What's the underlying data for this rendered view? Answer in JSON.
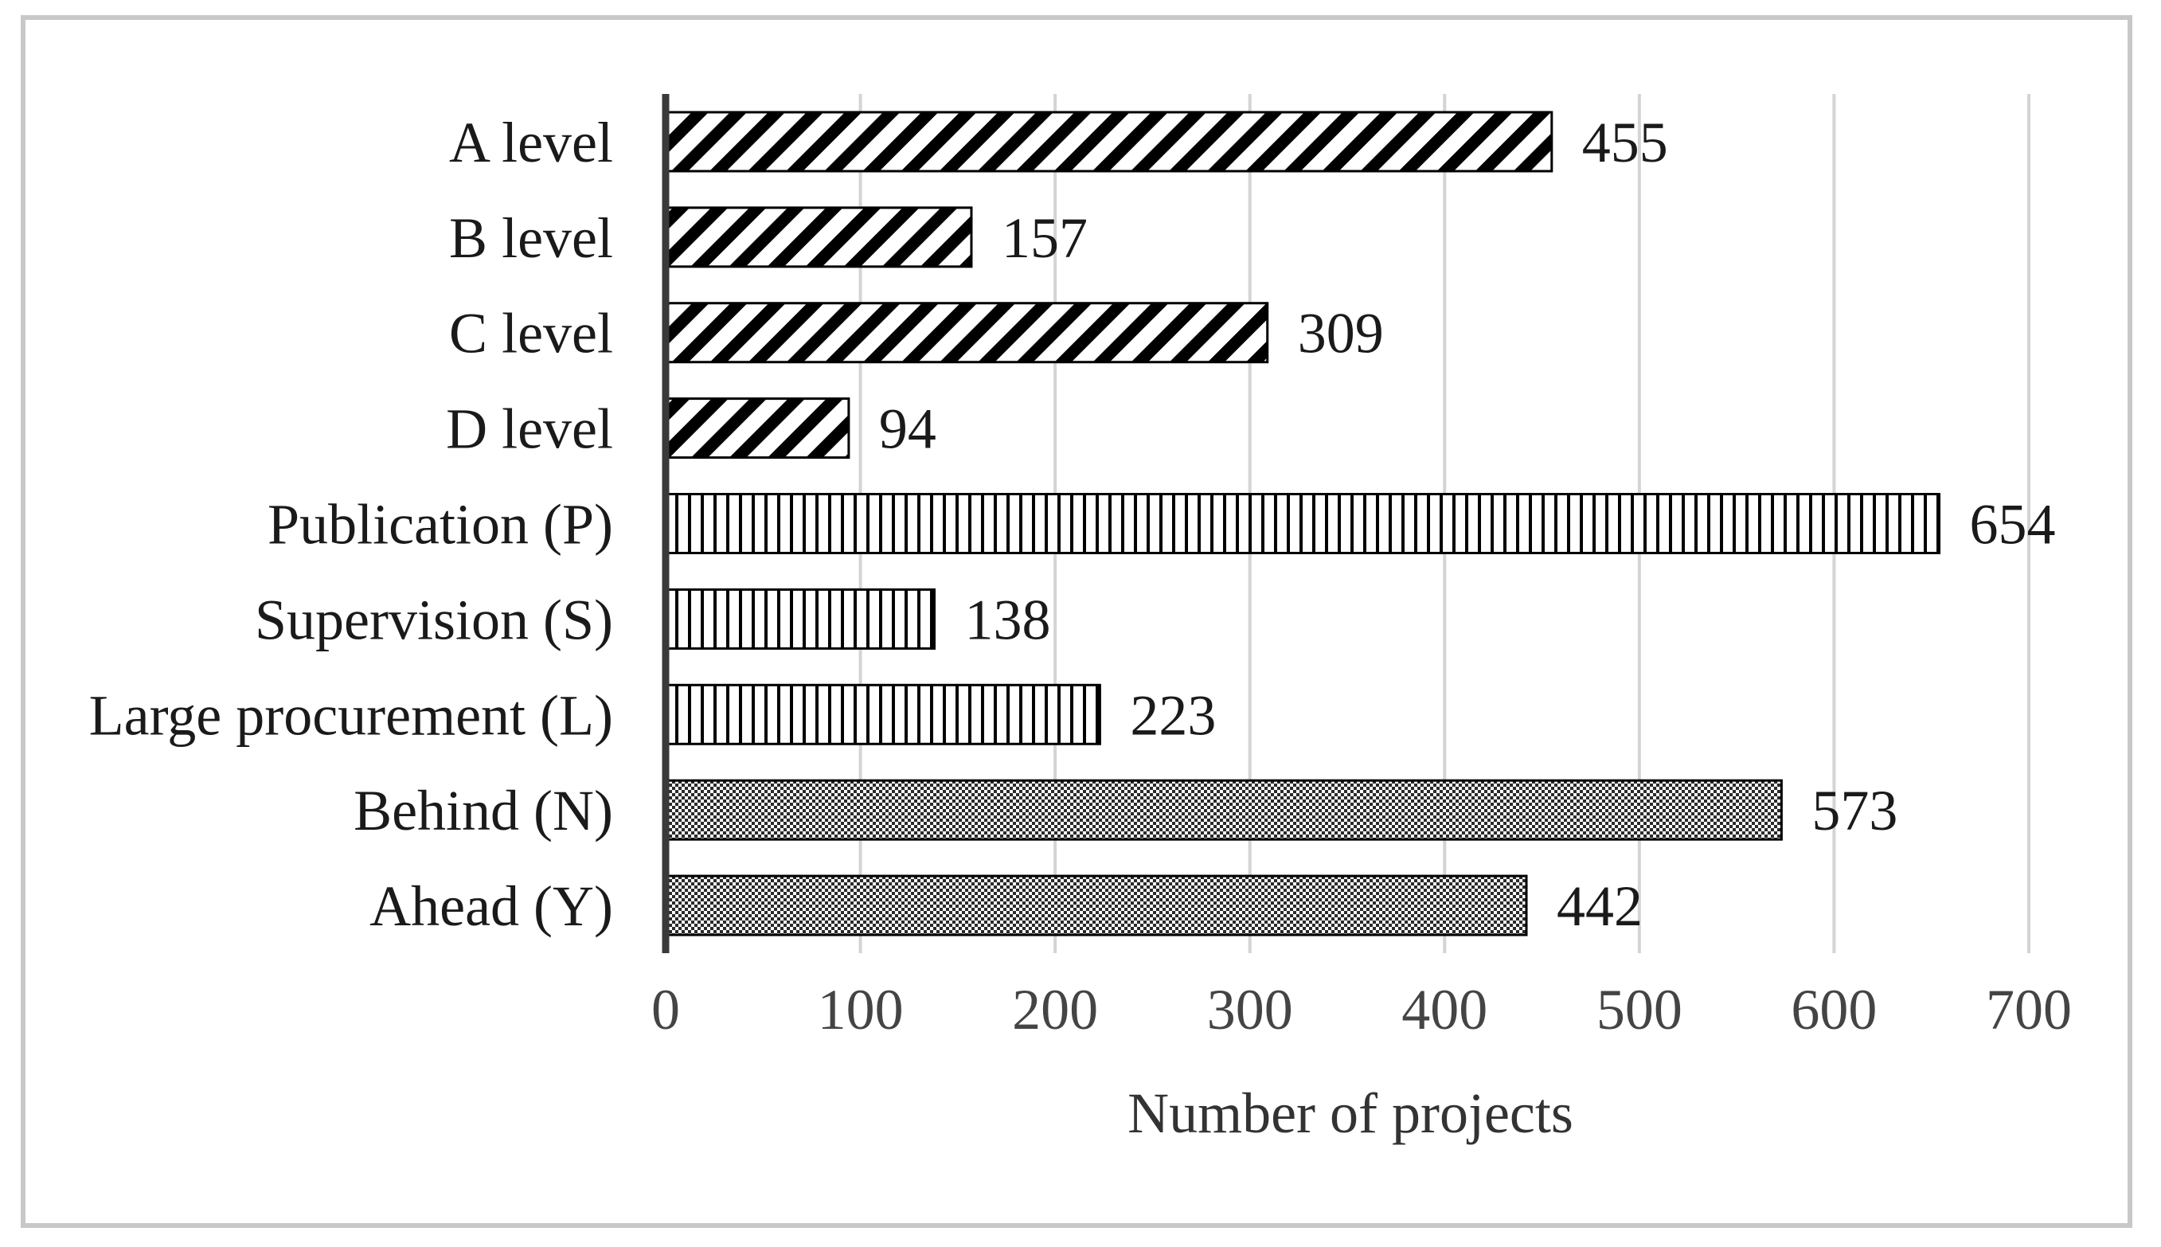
{
  "chart_data": {
    "type": "bar",
    "orientation": "horizontal",
    "title": "",
    "xlabel": "Number of projects",
    "ylabel": "",
    "xlim": [
      0,
      700
    ],
    "xticks": [
      0,
      100,
      200,
      300,
      400,
      500,
      600,
      700
    ],
    "grid": true,
    "legend": "none",
    "categories": [
      "A level",
      "B level",
      "C level",
      "D level",
      "Publication (P)",
      "Supervision (S)",
      "Large procurement (L)",
      "Behind (N)",
      "Ahead (Y)"
    ],
    "values": [
      455,
      157,
      309,
      94,
      654,
      138,
      223,
      573,
      442
    ],
    "patterns": [
      "diagonal-hatch",
      "diagonal-hatch",
      "diagonal-hatch",
      "diagonal-hatch",
      "vertical-hatch",
      "vertical-hatch",
      "vertical-hatch",
      "checker",
      "checker"
    ]
  },
  "colors": {
    "ink": "#000000",
    "grid": "#d4d4d4",
    "axis": "#3a3a3a",
    "frame": "#c8c8c8"
  }
}
